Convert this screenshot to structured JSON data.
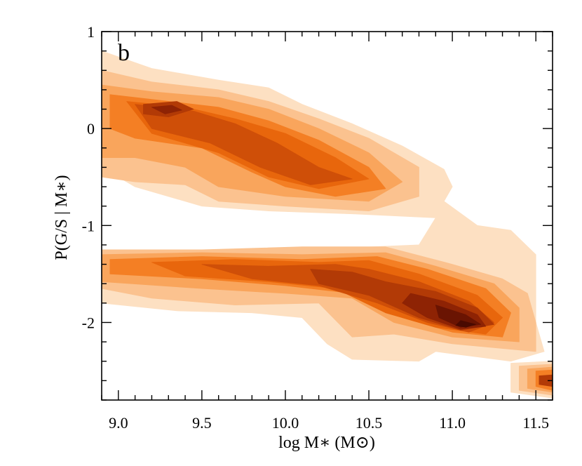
{
  "chart_data": {
    "type": "heatmap",
    "panel_label": "b",
    "xlabel": "log M∗ (M⊙)",
    "ylabel": "P(G/S | M∗)",
    "xlim": [
      8.9,
      11.6
    ],
    "ylim": [
      -2.8,
      1.0
    ],
    "x_ticks": [
      {
        "value": 9.0,
        "label": "9.0"
      },
      {
        "value": 9.5,
        "label": "9.5"
      },
      {
        "value": 10.0,
        "label": "10.0"
      },
      {
        "value": 10.5,
        "label": "10.5"
      },
      {
        "value": 11.0,
        "label": "11.0"
      },
      {
        "value": 11.5,
        "label": "11.5"
      }
    ],
    "y_ticks": [
      {
        "value": 1,
        "label": "1"
      },
      {
        "value": 0,
        "label": "0"
      },
      {
        "value": -1,
        "label": "-1"
      },
      {
        "value": -2,
        "label": "-2"
      }
    ],
    "x_minor_step": 0.1,
    "y_minor_step": 0.2,
    "colormap": [
      "#fde0c2",
      "#fbc28f",
      "#f9a55c",
      "#f47f24",
      "#e8660c",
      "#cf4f08",
      "#b23a06",
      "#8e2304",
      "#6a1402",
      "#4a0a01"
    ],
    "contour_levels": [
      {
        "level": 1,
        "color": "#fde0c2",
        "polygons": [
          [
            [
              8.9,
              0.8
            ],
            [
              9.2,
              0.62
            ],
            [
              9.6,
              0.5
            ],
            [
              9.9,
              0.42
            ],
            [
              10.1,
              0.25
            ],
            [
              10.4,
              0.05
            ],
            [
              10.7,
              -0.18
            ],
            [
              10.95,
              -0.42
            ],
            [
              11.0,
              -0.6
            ],
            [
              10.95,
              -0.75
            ],
            [
              11.15,
              -1.0
            ],
            [
              11.35,
              -1.05
            ],
            [
              11.5,
              -1.3
            ],
            [
              11.5,
              -2.0
            ],
            [
              11.55,
              -2.3
            ],
            [
              11.35,
              -2.4
            ],
            [
              10.9,
              -2.3
            ],
            [
              10.8,
              -2.4
            ],
            [
              10.4,
              -2.38
            ],
            [
              10.25,
              -2.22
            ],
            [
              10.1,
              -1.95
            ],
            [
              9.8,
              -1.9
            ],
            [
              9.35,
              -1.88
            ],
            [
              8.9,
              -1.8
            ],
            [
              8.9,
              -1.28
            ],
            [
              9.5,
              -1.25
            ],
            [
              10.1,
              -1.25
            ],
            [
              10.8,
              -1.2
            ],
            [
              10.9,
              -0.92
            ],
            [
              10.4,
              -0.88
            ],
            [
              9.9,
              -0.85
            ],
            [
              9.5,
              -0.8
            ],
            [
              9.1,
              -0.6
            ],
            [
              8.9,
              -0.4
            ]
          ],
          [
            [
              11.35,
              -2.42
            ],
            [
              11.6,
              -2.4
            ],
            [
              11.6,
              -2.78
            ],
            [
              11.35,
              -2.72
            ]
          ]
        ]
      },
      {
        "level": 2,
        "color": "#fbc28f",
        "polygons": [
          [
            [
              8.9,
              0.6
            ],
            [
              9.2,
              0.48
            ],
            [
              9.6,
              0.4
            ],
            [
              9.9,
              0.28
            ],
            [
              10.2,
              0.1
            ],
            [
              10.5,
              -0.1
            ],
            [
              10.8,
              -0.4
            ],
            [
              10.8,
              -0.7
            ],
            [
              10.5,
              -0.85
            ],
            [
              10.0,
              -0.8
            ],
            [
              9.6,
              -0.75
            ],
            [
              9.4,
              -0.58
            ],
            [
              9.1,
              -0.55
            ],
            [
              8.9,
              -0.5
            ]
          ],
          [
            [
              8.9,
              -1.25
            ],
            [
              9.5,
              -1.25
            ],
            [
              10.1,
              -1.22
            ],
            [
              10.6,
              -1.22
            ],
            [
              11.0,
              -1.4
            ],
            [
              11.3,
              -1.55
            ],
            [
              11.45,
              -1.7
            ],
            [
              11.5,
              -2.0
            ],
            [
              11.5,
              -2.3
            ],
            [
              11.0,
              -2.22
            ],
            [
              10.65,
              -2.12
            ],
            [
              10.4,
              -2.15
            ],
            [
              10.2,
              -1.8
            ],
            [
              9.7,
              -1.82
            ],
            [
              9.2,
              -1.75
            ],
            [
              8.9,
              -1.65
            ]
          ],
          [
            [
              11.4,
              -2.45
            ],
            [
              11.6,
              -2.43
            ],
            [
              11.6,
              -2.75
            ],
            [
              11.4,
              -2.7
            ]
          ]
        ]
      },
      {
        "level": 3,
        "color": "#f9a55c",
        "polygons": [
          [
            [
              8.9,
              0.45
            ],
            [
              9.2,
              0.38
            ],
            [
              9.6,
              0.32
            ],
            [
              9.9,
              0.2
            ],
            [
              10.2,
              0.0
            ],
            [
              10.5,
              -0.25
            ],
            [
              10.7,
              -0.55
            ],
            [
              10.5,
              -0.75
            ],
            [
              10.0,
              -0.7
            ],
            [
              9.6,
              -0.6
            ],
            [
              9.4,
              -0.4
            ],
            [
              9.1,
              -0.3
            ],
            [
              8.9,
              -0.3
            ]
          ],
          [
            [
              8.9,
              -1.3
            ],
            [
              9.5,
              -1.28
            ],
            [
              10.1,
              -1.3
            ],
            [
              10.6,
              -1.28
            ],
            [
              10.9,
              -1.42
            ],
            [
              11.25,
              -1.6
            ],
            [
              11.4,
              -1.85
            ],
            [
              11.4,
              -2.2
            ],
            [
              11.0,
              -2.15
            ],
            [
              10.65,
              -2.0
            ],
            [
              10.4,
              -1.75
            ],
            [
              10.0,
              -1.7
            ],
            [
              9.5,
              -1.65
            ],
            [
              8.9,
              -1.58
            ]
          ],
          [
            [
              11.45,
              -2.48
            ],
            [
              11.6,
              -2.46
            ],
            [
              11.6,
              -2.72
            ],
            [
              11.45,
              -2.68
            ]
          ]
        ]
      },
      {
        "level": 4,
        "color": "#f47f24",
        "polygons": [
          [
            [
              8.95,
              0.35
            ],
            [
              9.2,
              0.3
            ],
            [
              9.6,
              0.22
            ],
            [
              9.9,
              0.08
            ],
            [
              10.2,
              -0.12
            ],
            [
              10.5,
              -0.4
            ],
            [
              10.6,
              -0.62
            ],
            [
              10.3,
              -0.7
            ],
            [
              10.0,
              -0.6
            ],
            [
              9.8,
              -0.45
            ],
            [
              9.5,
              -0.2
            ],
            [
              9.1,
              -0.1
            ],
            [
              8.95,
              0.0
            ]
          ],
          [
            [
              8.95,
              -1.35
            ],
            [
              9.5,
              -1.32
            ],
            [
              10.1,
              -1.35
            ],
            [
              10.55,
              -1.32
            ],
            [
              10.85,
              -1.45
            ],
            [
              11.2,
              -1.65
            ],
            [
              11.35,
              -1.9
            ],
            [
              11.3,
              -2.15
            ],
            [
              11.0,
              -2.1
            ],
            [
              10.7,
              -1.95
            ],
            [
              10.4,
              -1.7
            ],
            [
              10.0,
              -1.62
            ],
            [
              9.5,
              -1.55
            ],
            [
              8.95,
              -1.5
            ]
          ],
          [
            [
              11.5,
              -2.5
            ],
            [
              11.6,
              -2.49
            ],
            [
              11.6,
              -2.7
            ],
            [
              11.5,
              -2.66
            ]
          ]
        ]
      },
      {
        "level": 5,
        "color": "#e8660c",
        "polygons": [
          [
            [
              9.05,
              0.28
            ],
            [
              9.4,
              0.22
            ],
            [
              9.7,
              0.1
            ],
            [
              10.0,
              -0.05
            ],
            [
              10.3,
              -0.3
            ],
            [
              10.5,
              -0.52
            ],
            [
              10.2,
              -0.62
            ],
            [
              9.9,
              -0.5
            ],
            [
              9.6,
              -0.25
            ],
            [
              9.2,
              -0.05
            ]
          ],
          [
            [
              9.2,
              -1.38
            ],
            [
              9.7,
              -1.35
            ],
            [
              10.2,
              -1.38
            ],
            [
              10.5,
              -1.36
            ],
            [
              10.8,
              -1.5
            ],
            [
              11.15,
              -1.72
            ],
            [
              11.3,
              -1.95
            ],
            [
              11.2,
              -2.12
            ],
            [
              10.9,
              -2.05
            ],
            [
              10.6,
              -1.9
            ],
            [
              10.3,
              -1.65
            ],
            [
              9.9,
              -1.58
            ],
            [
              9.4,
              -1.52
            ]
          ]
        ]
      },
      {
        "level": 6,
        "color": "#cf4f08",
        "polygons": [
          [
            [
              9.1,
              0.25
            ],
            [
              9.45,
              0.18
            ],
            [
              9.7,
              0.05
            ],
            [
              9.95,
              -0.15
            ],
            [
              10.2,
              -0.4
            ],
            [
              10.4,
              -0.52
            ],
            [
              10.15,
              -0.58
            ],
            [
              9.85,
              -0.4
            ],
            [
              9.55,
              -0.15
            ],
            [
              9.2,
              0.0
            ]
          ],
          [
            [
              9.5,
              -1.4
            ],
            [
              9.9,
              -1.42
            ],
            [
              10.3,
              -1.4
            ],
            [
              10.5,
              -1.45
            ],
            [
              10.8,
              -1.58
            ],
            [
              11.1,
              -1.78
            ],
            [
              11.25,
              -2.0
            ],
            [
              11.1,
              -2.1
            ],
            [
              10.85,
              -2.0
            ],
            [
              10.55,
              -1.8
            ],
            [
              10.2,
              -1.62
            ],
            [
              9.8,
              -1.55
            ]
          ]
        ]
      },
      {
        "level": 7,
        "color": "#b23a06",
        "polygons": [
          [
            [
              9.15,
              0.25
            ],
            [
              9.35,
              0.28
            ],
            [
              9.45,
              0.2
            ],
            [
              9.3,
              0.12
            ],
            [
              9.15,
              0.15
            ]
          ],
          [
            [
              10.15,
              -1.45
            ],
            [
              10.4,
              -1.48
            ],
            [
              10.6,
              -1.58
            ],
            [
              10.9,
              -1.68
            ],
            [
              11.15,
              -1.85
            ],
            [
              11.25,
              -2.02
            ],
            [
              11.05,
              -2.08
            ],
            [
              10.8,
              -1.95
            ],
            [
              10.5,
              -1.72
            ],
            [
              10.2,
              -1.6
            ]
          ],
          [
            [
              11.52,
              -2.55
            ],
            [
              11.6,
              -2.54
            ],
            [
              11.6,
              -2.66
            ],
            [
              11.52,
              -2.64
            ]
          ]
        ]
      },
      {
        "level": 8,
        "color": "#8e2304",
        "polygons": [
          [
            [
              9.2,
              0.22
            ],
            [
              9.32,
              0.24
            ],
            [
              9.38,
              0.19
            ],
            [
              9.28,
              0.15
            ]
          ],
          [
            [
              10.75,
              -1.7
            ],
            [
              10.95,
              -1.78
            ],
            [
              11.15,
              -1.92
            ],
            [
              11.2,
              -2.04
            ],
            [
              11.05,
              -2.07
            ],
            [
              10.85,
              -1.95
            ],
            [
              10.7,
              -1.8
            ]
          ]
        ]
      },
      {
        "level": 9,
        "color": "#6a1402",
        "polygons": [
          [
            [
              10.9,
              -1.82
            ],
            [
              11.08,
              -1.92
            ],
            [
              11.17,
              -2.02
            ],
            [
              11.05,
              -2.05
            ],
            [
              10.92,
              -1.95
            ]
          ]
        ]
      },
      {
        "level": 10,
        "color": "#4a0a01",
        "polygons": [
          [
            [
              11.05,
              -1.98
            ],
            [
              11.14,
              -2.02
            ],
            [
              11.08,
              -2.05
            ],
            [
              11.02,
              -2.03
            ]
          ]
        ]
      }
    ]
  }
}
